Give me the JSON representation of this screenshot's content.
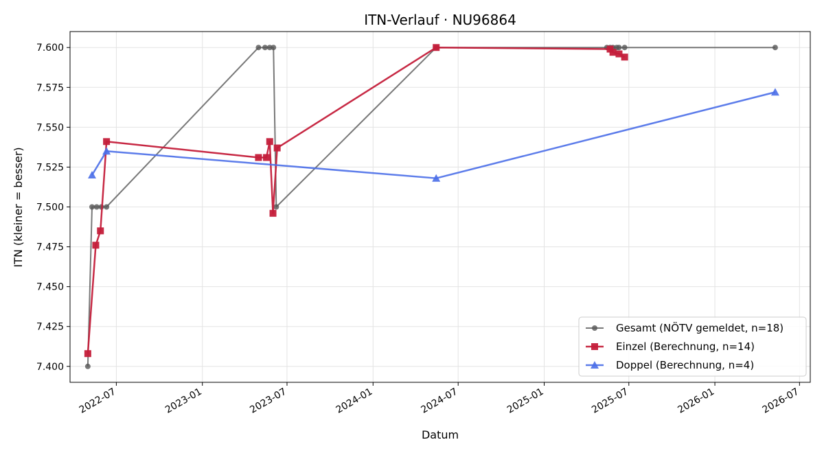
{
  "chart_data": {
    "type": "line",
    "title": "ITN-Verlauf · NU96864",
    "xlabel": "Datum",
    "ylabel": "ITN  (kleiner = besser)",
    "x_axis": "date",
    "xlim": [
      "2022-03-24",
      "2026-07-24"
    ],
    "ylim": [
      7.39,
      7.61
    ],
    "x_ticks": [
      "2022-07",
      "2023-01",
      "2023-07",
      "2024-01",
      "2024-07",
      "2025-01",
      "2025-07",
      "2026-01",
      "2026-07"
    ],
    "y_ticks": [
      "7.400",
      "7.425",
      "7.450",
      "7.475",
      "7.500",
      "7.525",
      "7.550",
      "7.575",
      "7.600"
    ],
    "grid": true,
    "legend_position": "lower-right",
    "series": [
      {
        "name": "Gesamt (NÖTV gemeldet, n=18)",
        "color": "#555555",
        "marker": "circle",
        "points": [
          [
            "2022-05-01",
            7.4
          ],
          [
            "2022-05-10",
            7.5
          ],
          [
            "2022-05-20",
            7.5
          ],
          [
            "2022-05-30",
            7.5
          ],
          [
            "2022-06-10",
            7.5
          ],
          [
            "2023-05-01",
            7.6
          ],
          [
            "2023-05-15",
            7.6
          ],
          [
            "2023-05-25",
            7.6
          ],
          [
            "2023-06-02",
            7.6
          ],
          [
            "2023-06-08",
            7.5
          ],
          [
            "2024-05-15",
            7.6
          ],
          [
            "2025-05-15",
            7.6
          ],
          [
            "2025-05-22",
            7.6
          ],
          [
            "2025-05-28",
            7.6
          ],
          [
            "2025-06-05",
            7.6
          ],
          [
            "2025-06-10",
            7.6
          ],
          [
            "2025-06-22",
            7.6
          ],
          [
            "2026-05-10",
            7.6
          ]
        ]
      },
      {
        "name": "Einzel (Berechnung, n=14)",
        "color": "#c41e3a",
        "marker": "square",
        "points": [
          [
            "2022-05-01",
            7.408
          ],
          [
            "2022-05-18",
            7.476
          ],
          [
            "2022-05-28",
            7.485
          ],
          [
            "2022-06-10",
            7.541
          ],
          [
            "2023-05-01",
            7.531
          ],
          [
            "2023-05-18",
            7.531
          ],
          [
            "2023-05-25",
            7.541
          ],
          [
            "2023-06-01",
            7.496
          ],
          [
            "2023-06-10",
            7.537
          ],
          [
            "2024-05-15",
            7.6
          ],
          [
            "2025-05-22",
            7.599
          ],
          [
            "2025-05-28",
            7.597
          ],
          [
            "2025-06-10",
            7.596
          ],
          [
            "2025-06-22",
            7.594
          ]
        ]
      },
      {
        "name": "Doppel (Berechnung, n=4)",
        "color": "#4a6ee8",
        "marker": "triangle",
        "points": [
          [
            "2022-05-10",
            7.52
          ],
          [
            "2022-06-10",
            7.535
          ],
          [
            "2024-05-15",
            7.518
          ],
          [
            "2026-05-10",
            7.572
          ]
        ]
      }
    ]
  }
}
